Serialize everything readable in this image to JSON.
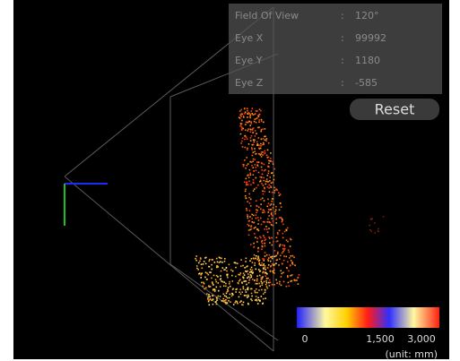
{
  "panel": {
    "rows": [
      {
        "label": "Field Of View",
        "sep": ":",
        "value": "120°"
      },
      {
        "label": "Eye X",
        "sep": ":",
        "value": "99992"
      },
      {
        "label": "Eye Y",
        "sep": ":",
        "value": "1180"
      },
      {
        "label": "Eye Z",
        "sep": ":",
        "value": "-585"
      }
    ]
  },
  "reset": "Reset",
  "colorbar": {
    "ticks": [
      "0",
      "1,500",
      "3,000"
    ],
    "unit": "(unit: mm)"
  }
}
